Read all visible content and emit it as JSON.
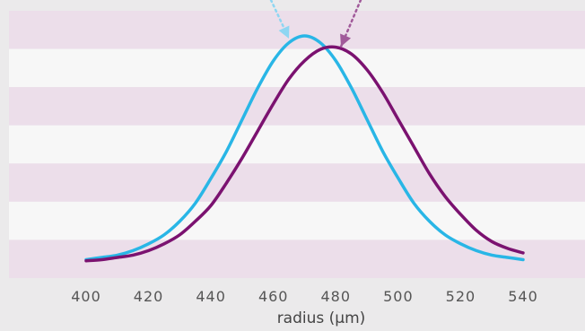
{
  "colors": {
    "band_dark": "#ecdeea",
    "band_light": "#f7f7f7",
    "background": "#ebeaeb",
    "series_1": "#29b6e6",
    "series_2": "#7b1270"
  },
  "chart_data": {
    "type": "line",
    "xlabel": "radius (µm)",
    "ylabel": "",
    "xlim": [
      400,
      540
    ],
    "ylim": [
      0,
      1
    ],
    "xticks": [
      "400",
      "420",
      "440",
      "460",
      "480",
      "500",
      "520",
      "540"
    ],
    "grid": "horizontal bands",
    "series": [
      {
        "color": "#29b6e6",
        "x": [
          400,
          405,
          410,
          415,
          420,
          425,
          430,
          435,
          440,
          445,
          450,
          455,
          460,
          465,
          470,
          475,
          480,
          485,
          490,
          495,
          500,
          505,
          510,
          515,
          520,
          525,
          530,
          535,
          540
        ],
        "y": [
          0.01,
          0.02,
          0.03,
          0.05,
          0.08,
          0.12,
          0.18,
          0.26,
          0.37,
          0.49,
          0.63,
          0.77,
          0.89,
          0.97,
          1.0,
          0.97,
          0.89,
          0.77,
          0.63,
          0.49,
          0.37,
          0.26,
          0.18,
          0.12,
          0.08,
          0.05,
          0.03,
          0.02,
          0.01
        ]
      },
      {
        "color": "#7b1270",
        "x": [
          400,
          405,
          410,
          415,
          420,
          425,
          430,
          435,
          440,
          445,
          450,
          455,
          460,
          465,
          470,
          475,
          480,
          485,
          490,
          495,
          500,
          505,
          510,
          515,
          520,
          525,
          530,
          535,
          540
        ],
        "y": [
          0.005,
          0.01,
          0.02,
          0.03,
          0.05,
          0.08,
          0.12,
          0.18,
          0.25,
          0.35,
          0.46,
          0.58,
          0.7,
          0.81,
          0.89,
          0.94,
          0.95,
          0.92,
          0.85,
          0.75,
          0.63,
          0.51,
          0.39,
          0.29,
          0.21,
          0.14,
          0.09,
          0.06,
          0.04
        ]
      }
    ]
  }
}
